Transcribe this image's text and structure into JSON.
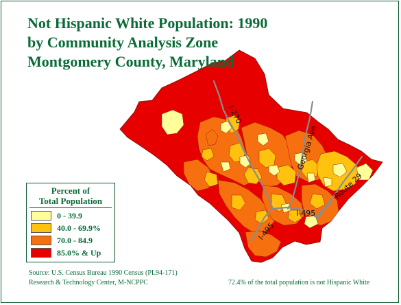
{
  "title": {
    "line1": "Not Hispanic White Population: 1990",
    "line2": "by Community Analysis Zone",
    "line3": "Montgomery County, Maryland"
  },
  "legend": {
    "title_line1": "Percent of",
    "title_line2": "Total Population",
    "items": [
      {
        "label": "0 - 39.9",
        "color": "#ffff99"
      },
      {
        "label": "40.0 - 69.9%",
        "color": "#ffc20e"
      },
      {
        "label": "70.0 - 84.9",
        "color": "#f7700f"
      },
      {
        "label": "85.0% & Up",
        "color": "#e60000"
      }
    ]
  },
  "roads": [
    {
      "label": "I-270"
    },
    {
      "label": "Georgia Ave"
    },
    {
      "label": "Route 29"
    },
    {
      "label": "I-495"
    },
    {
      "label": "I-495"
    }
  ],
  "footer": {
    "source": "Source: U.S. Census Bureau 1990 Census (PL94-171)",
    "org": "Research & Technology Center, M-NCPPC",
    "summary": "72.4% of the total population is not Hispanic White"
  },
  "colors": {
    "title_text": "#0a6b36",
    "road_line": "#8c8c8c",
    "zone_border": "#9e1a10"
  }
}
